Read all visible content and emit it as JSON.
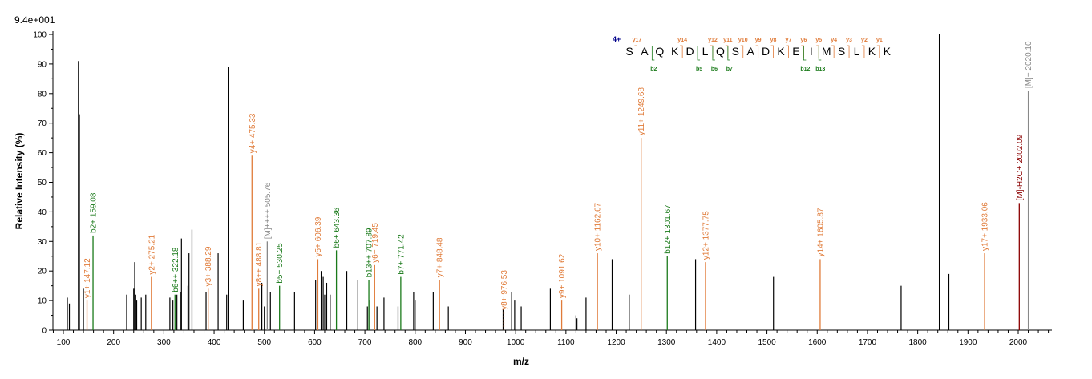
{
  "chart_data": {
    "type": "bar",
    "title": "",
    "max_intensity_label": "9.4e+001",
    "xlabel": "m/z",
    "ylabel": "Relative  Intensity (%)",
    "xlim": [
      80,
      2070
    ],
    "ylim": [
      0,
      100
    ],
    "x_ticks": [
      100,
      200,
      300,
      400,
      500,
      600,
      700,
      800,
      900,
      1000,
      1100,
      1200,
      1300,
      1400,
      1500,
      1600,
      1700,
      1800,
      1900,
      2000
    ],
    "y_ticks": [
      0,
      10,
      20,
      30,
      40,
      50,
      60,
      70,
      80,
      90,
      100
    ],
    "colors": {
      "y_ion": "#e07b39",
      "b_ion": "#1a7a1a",
      "precursor": "#8b0000",
      "molecular": "#888888",
      "unannotated": "#000000",
      "charge": "#00008b"
    },
    "peptide": {
      "charge_label": "4+",
      "sequence": [
        "S",
        "A",
        "Q",
        "K",
        "D",
        "L",
        "Q",
        "S",
        "A",
        "D",
        "K",
        "E",
        "I",
        "M",
        "S",
        "L",
        "K",
        "K"
      ],
      "y_ion_labels": [
        {
          "after_residue": 1,
          "label": "y17"
        },
        {
          "after_residue": 4,
          "label": "y14"
        },
        {
          "after_residue": 6,
          "label": "y12"
        },
        {
          "after_residue": 7,
          "label": "y11"
        },
        {
          "after_residue": 8,
          "label": "y10"
        },
        {
          "after_residue": 9,
          "label": "y9"
        },
        {
          "after_residue": 10,
          "label": "y8"
        },
        {
          "after_residue": 11,
          "label": "y7"
        },
        {
          "after_residue": 12,
          "label": "y6"
        },
        {
          "after_residue": 13,
          "label": "y5"
        },
        {
          "after_residue": 14,
          "label": "y4"
        },
        {
          "after_residue": 15,
          "label": "y3"
        },
        {
          "after_residue": 16,
          "label": "y2"
        },
        {
          "after_residue": 17,
          "label": "y1"
        }
      ],
      "b_ion_labels": [
        {
          "after_residue": 2,
          "label": "b2"
        },
        {
          "after_residue": 5,
          "label": "b5"
        },
        {
          "after_residue": 6,
          "label": "b6"
        },
        {
          "after_residue": 7,
          "label": "b7"
        },
        {
          "after_residue": 12,
          "label": "b12"
        },
        {
          "after_residue": 13,
          "label": "b13"
        }
      ]
    },
    "annotated_peaks": [
      {
        "mz": 147.12,
        "intensity": 10,
        "label": "y1+ 147.12",
        "kind": "y"
      },
      {
        "mz": 159.08,
        "intensity": 32,
        "label": "b2+ 159.08",
        "kind": "b"
      },
      {
        "mz": 275.21,
        "intensity": 18,
        "label": "y2+ 275.21",
        "kind": "y"
      },
      {
        "mz": 322.18,
        "intensity": 12,
        "label": "b6++ 322.18",
        "kind": "b"
      },
      {
        "mz": 388.29,
        "intensity": 14,
        "label": "y3+ 388.29",
        "kind": "y"
      },
      {
        "mz": 475.33,
        "intensity": 59,
        "label": "y4+ 475.33",
        "kind": "y"
      },
      {
        "mz": 488.81,
        "intensity": 14,
        "label": "y8++ 488.81",
        "kind": "y"
      },
      {
        "mz": 505.76,
        "intensity": 30,
        "label": "[M]++++ 505.76",
        "kind": "m"
      },
      {
        "mz": 530.25,
        "intensity": 15,
        "label": "b5+ 530.25",
        "kind": "b"
      },
      {
        "mz": 606.39,
        "intensity": 24,
        "label": "y5+ 606.39",
        "kind": "y"
      },
      {
        "mz": 643.36,
        "intensity": 27,
        "label": "b6+ 643.36",
        "kind": "b"
      },
      {
        "mz": 707.89,
        "intensity": 17,
        "label": "b13++ 707.89",
        "kind": "b"
      },
      {
        "mz": 719.45,
        "intensity": 22,
        "label": "y6+ 719.45",
        "kind": "y"
      },
      {
        "mz": 771.42,
        "intensity": 18,
        "label": "b7+ 771.42",
        "kind": "b"
      },
      {
        "mz": 848.48,
        "intensity": 17,
        "label": "y7+ 848.48",
        "kind": "y"
      },
      {
        "mz": 976.53,
        "intensity": 6,
        "label": "y8+ 976.53",
        "kind": "y"
      },
      {
        "mz": 1091.62,
        "intensity": 10,
        "label": "y9+ 1091.62",
        "kind": "y"
      },
      {
        "mz": 1162.67,
        "intensity": 26,
        "label": "y10+ 1162.67",
        "kind": "y"
      },
      {
        "mz": 1249.68,
        "intensity": 65,
        "label": "y11+ 1249.68",
        "kind": "y"
      },
      {
        "mz": 1301.67,
        "intensity": 25,
        "label": "b12+ 1301.67",
        "kind": "b"
      },
      {
        "mz": 1377.75,
        "intensity": 23,
        "label": "y12+ 1377.75",
        "kind": "y"
      },
      {
        "mz": 1605.87,
        "intensity": 24,
        "label": "y14+ 1605.87",
        "kind": "y"
      },
      {
        "mz": 1933.06,
        "intensity": 26,
        "label": "y17+ 1933.06",
        "kind": "y"
      },
      {
        "mz": 2002.09,
        "intensity": 43,
        "label": "[M]-H2O+ 2002.09",
        "kind": "p"
      },
      {
        "mz": 2020.1,
        "intensity": 81,
        "label": "[M]+ 2020.10",
        "kind": "m"
      }
    ],
    "unannotated_peaks": [
      {
        "mz": 108,
        "intensity": 11
      },
      {
        "mz": 112,
        "intensity": 9
      },
      {
        "mz": 130,
        "intensity": 91
      },
      {
        "mz": 132,
        "intensity": 73
      },
      {
        "mz": 140,
        "intensity": 14
      },
      {
        "mz": 226,
        "intensity": 12
      },
      {
        "mz": 240,
        "intensity": 14
      },
      {
        "mz": 242,
        "intensity": 23
      },
      {
        "mz": 244,
        "intensity": 12
      },
      {
        "mz": 246,
        "intensity": 10
      },
      {
        "mz": 255,
        "intensity": 11
      },
      {
        "mz": 264,
        "intensity": 12
      },
      {
        "mz": 312,
        "intensity": 11
      },
      {
        "mz": 318,
        "intensity": 10
      },
      {
        "mz": 326,
        "intensity": 12
      },
      {
        "mz": 333,
        "intensity": 13
      },
      {
        "mz": 335,
        "intensity": 31
      },
      {
        "mz": 348,
        "intensity": 15
      },
      {
        "mz": 350,
        "intensity": 26
      },
      {
        "mz": 356,
        "intensity": 34
      },
      {
        "mz": 384,
        "intensity": 13
      },
      {
        "mz": 408,
        "intensity": 26
      },
      {
        "mz": 425,
        "intensity": 12
      },
      {
        "mz": 428,
        "intensity": 89
      },
      {
        "mz": 458,
        "intensity": 10
      },
      {
        "mz": 495,
        "intensity": 16
      },
      {
        "mz": 500,
        "intensity": 8
      },
      {
        "mz": 512,
        "intensity": 13
      },
      {
        "mz": 560,
        "intensity": 13
      },
      {
        "mz": 602,
        "intensity": 17
      },
      {
        "mz": 613,
        "intensity": 20
      },
      {
        "mz": 617,
        "intensity": 18
      },
      {
        "mz": 620,
        "intensity": 12
      },
      {
        "mz": 624,
        "intensity": 16
      },
      {
        "mz": 631,
        "intensity": 12
      },
      {
        "mz": 664,
        "intensity": 20
      },
      {
        "mz": 686,
        "intensity": 17
      },
      {
        "mz": 705,
        "intensity": 8
      },
      {
        "mz": 710,
        "intensity": 10
      },
      {
        "mz": 724,
        "intensity": 8
      },
      {
        "mz": 738,
        "intensity": 11
      },
      {
        "mz": 766,
        "intensity": 8
      },
      {
        "mz": 797,
        "intensity": 13
      },
      {
        "mz": 800,
        "intensity": 10
      },
      {
        "mz": 836,
        "intensity": 13
      },
      {
        "mz": 866,
        "intensity": 8
      },
      {
        "mz": 975,
        "intensity": 7
      },
      {
        "mz": 992,
        "intensity": 13
      },
      {
        "mz": 998,
        "intensity": 10
      },
      {
        "mz": 1011,
        "intensity": 8
      },
      {
        "mz": 1069,
        "intensity": 14
      },
      {
        "mz": 1120,
        "intensity": 5
      },
      {
        "mz": 1122,
        "intensity": 4
      },
      {
        "mz": 1140,
        "intensity": 11
      },
      {
        "mz": 1192,
        "intensity": 24
      },
      {
        "mz": 1226,
        "intensity": 12
      },
      {
        "mz": 1358,
        "intensity": 24
      },
      {
        "mz": 1513,
        "intensity": 18
      },
      {
        "mz": 1767,
        "intensity": 15
      },
      {
        "mz": 1843,
        "intensity": 100
      },
      {
        "mz": 1862,
        "intensity": 19
      }
    ]
  }
}
